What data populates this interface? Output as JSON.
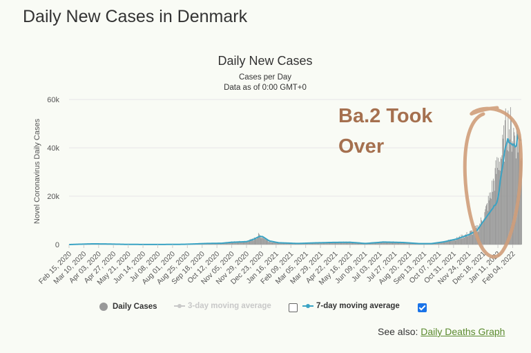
{
  "page_title": "Daily New Cases in Denmark",
  "chart_data": {
    "type": "bar",
    "title": "Daily New Cases",
    "subtitle": "Cases per Day",
    "data_note": "Data as of 0:00 GMT+0",
    "ylabel": "Novel Coronavirus Daily Cases",
    "ylim": [
      0,
      60000
    ],
    "yticks": [
      0,
      20000,
      40000,
      60000
    ],
    "ytick_labels": [
      "0",
      "20k",
      "40k",
      "60k"
    ],
    "x_start": "Feb 15, 2020",
    "x_end": "Feb 18, 2022",
    "xticks": [
      "Feb 15, 2020",
      "Mar 10, 2020",
      "Apr 03, 2020",
      "Apr 27, 2020",
      "May 21, 2020",
      "Jun 14, 2020",
      "Jul 08, 2020",
      "Aug 01, 2020",
      "Aug 25, 2020",
      "Sep 18, 2020",
      "Oct 12, 2020",
      "Nov 05, 2020",
      "Nov 29, 2020",
      "Dec 23, 2020",
      "Jan 16, 2021",
      "Feb 09, 2021",
      "Mar 05, 2021",
      "Mar 29, 2021",
      "Apr 22, 2021",
      "May 16, 2021",
      "Jun 09, 2021",
      "Jul 03, 2021",
      "Jul 27, 2021",
      "Aug 20, 2021",
      "Sep 13, 2021",
      "Oct 07, 2021",
      "Oct 31, 2021",
      "Nov 24, 2021",
      "Dec 18, 2021",
      "Jan 11, 2022",
      "Feb 04, 2022"
    ],
    "series": [
      {
        "name": "Daily Cases",
        "color": "#999999",
        "kind": "bars",
        "keypoints": [
          [
            "Feb 15, 2020",
            0
          ],
          [
            "Mar 20, 2020",
            350
          ],
          [
            "Apr 10, 2020",
            280
          ],
          [
            "May 15, 2020",
            90
          ],
          [
            "Jun 14, 2020",
            30
          ],
          [
            "Jul 20, 2020",
            40
          ],
          [
            "Aug 20, 2020",
            100
          ],
          [
            "Sep 25, 2020",
            500
          ],
          [
            "Oct 20, 2020",
            600
          ],
          [
            "Nov 05, 2020",
            1050
          ],
          [
            "Nov 29, 2020",
            1300
          ],
          [
            "Dec 10, 2020",
            2200
          ],
          [
            "Dec 18, 2020",
            3700
          ],
          [
            "Dec 23, 2020",
            3500
          ],
          [
            "Jan 05, 2021",
            1300
          ],
          [
            "Jan 20, 2021",
            700
          ],
          [
            "Feb 20, 2021",
            450
          ],
          [
            "Mar 20, 2021",
            700
          ],
          [
            "Apr 22, 2021",
            900
          ],
          [
            "May 16, 2021",
            1000
          ],
          [
            "Jun 10, 2021",
            450
          ],
          [
            "Jul 10, 2021",
            1100
          ],
          [
            "Aug 10, 2021",
            900
          ],
          [
            "Sep 05, 2021",
            400
          ],
          [
            "Sep 25, 2021",
            400
          ],
          [
            "Oct 15, 2021",
            1200
          ],
          [
            "Nov 05, 2021",
            2500
          ],
          [
            "Nov 24, 2021",
            4400
          ],
          [
            "Dec 08, 2021",
            6500
          ],
          [
            "Dec 18, 2021",
            11000
          ],
          [
            "Dec 28, 2021",
            19000
          ],
          [
            "Jan 05, 2022",
            27000
          ],
          [
            "Jan 11, 2022",
            34000
          ],
          [
            "Jan 18, 2022",
            38000
          ],
          [
            "Jan 25, 2022",
            50000
          ],
          [
            "Feb 01, 2022",
            47000
          ],
          [
            "Feb 08, 2022",
            45000
          ],
          [
            "Feb 14, 2022",
            42000
          ],
          [
            "Feb 18, 2022",
            38000
          ]
        ]
      },
      {
        "name": "3-day moving average",
        "color": "#c8c8c8",
        "kind": "line",
        "visible": false
      },
      {
        "name": "7-day moving average",
        "color": "#3aa3c4",
        "kind": "line",
        "visible": true,
        "keypoints": [
          [
            "Feb 15, 2020",
            0
          ],
          [
            "Mar 22, 2020",
            280
          ],
          [
            "Apr 10, 2020",
            260
          ],
          [
            "May 15, 2020",
            90
          ],
          [
            "Jun 14, 2020",
            40
          ],
          [
            "Jul 20, 2020",
            50
          ],
          [
            "Aug 20, 2020",
            100
          ],
          [
            "Sep 25, 2020",
            450
          ],
          [
            "Oct 20, 2020",
            550
          ],
          [
            "Nov 05, 2020",
            950
          ],
          [
            "Nov 29, 2020",
            1200
          ],
          [
            "Dec 10, 2020",
            2100
          ],
          [
            "Dec 20, 2020",
            3400
          ],
          [
            "Dec 25, 2020",
            3300
          ],
          [
            "Jan 05, 2021",
            1500
          ],
          [
            "Jan 20, 2021",
            750
          ],
          [
            "Feb 20, 2021",
            450
          ],
          [
            "Mar 20, 2021",
            700
          ],
          [
            "Apr 22, 2021",
            900
          ],
          [
            "May 16, 2021",
            950
          ],
          [
            "Jun 10, 2021",
            450
          ],
          [
            "Jul 10, 2021",
            1050
          ],
          [
            "Aug 10, 2021",
            850
          ],
          [
            "Sep 05, 2021",
            400
          ],
          [
            "Sep 25, 2021",
            380
          ],
          [
            "Oct 15, 2021",
            1100
          ],
          [
            "Nov 05, 2021",
            2300
          ],
          [
            "Nov 24, 2021",
            4000
          ],
          [
            "Dec 08, 2021",
            5800
          ],
          [
            "Dec 18, 2021",
            9500
          ],
          [
            "Dec 28, 2021",
            13000
          ],
          [
            "Jan 05, 2022",
            16000
          ],
          [
            "Jan 08, 2022",
            17000
          ],
          [
            "Jan 11, 2022",
            19500
          ],
          [
            "Jan 14, 2022",
            24000
          ],
          [
            "Jan 18, 2022",
            32000
          ],
          [
            "Jan 21, 2022",
            37000
          ],
          [
            "Jan 25, 2022",
            42000
          ],
          [
            "Jan 28, 2022",
            43000
          ],
          [
            "Feb 01, 2022",
            40000
          ],
          [
            "Feb 04, 2022",
            42000
          ],
          [
            "Feb 08, 2022",
            40000
          ],
          [
            "Feb 12, 2022",
            44000
          ],
          [
            "Feb 18, 2022",
            42000
          ]
        ]
      }
    ],
    "annotation": {
      "lines": [
        "Ba.2 Took",
        "Over"
      ],
      "color": "#a5704f",
      "circle_color": "#cf9d7a"
    }
  },
  "legend": {
    "daily_label": "Daily Cases",
    "ma3_label": "3-day moving average",
    "ma7_label": "7-day moving average",
    "ma3_checked": false,
    "ma7_checked": true
  },
  "see_also": {
    "prefix": "See also:",
    "link_text": "Daily Deaths Graph"
  }
}
